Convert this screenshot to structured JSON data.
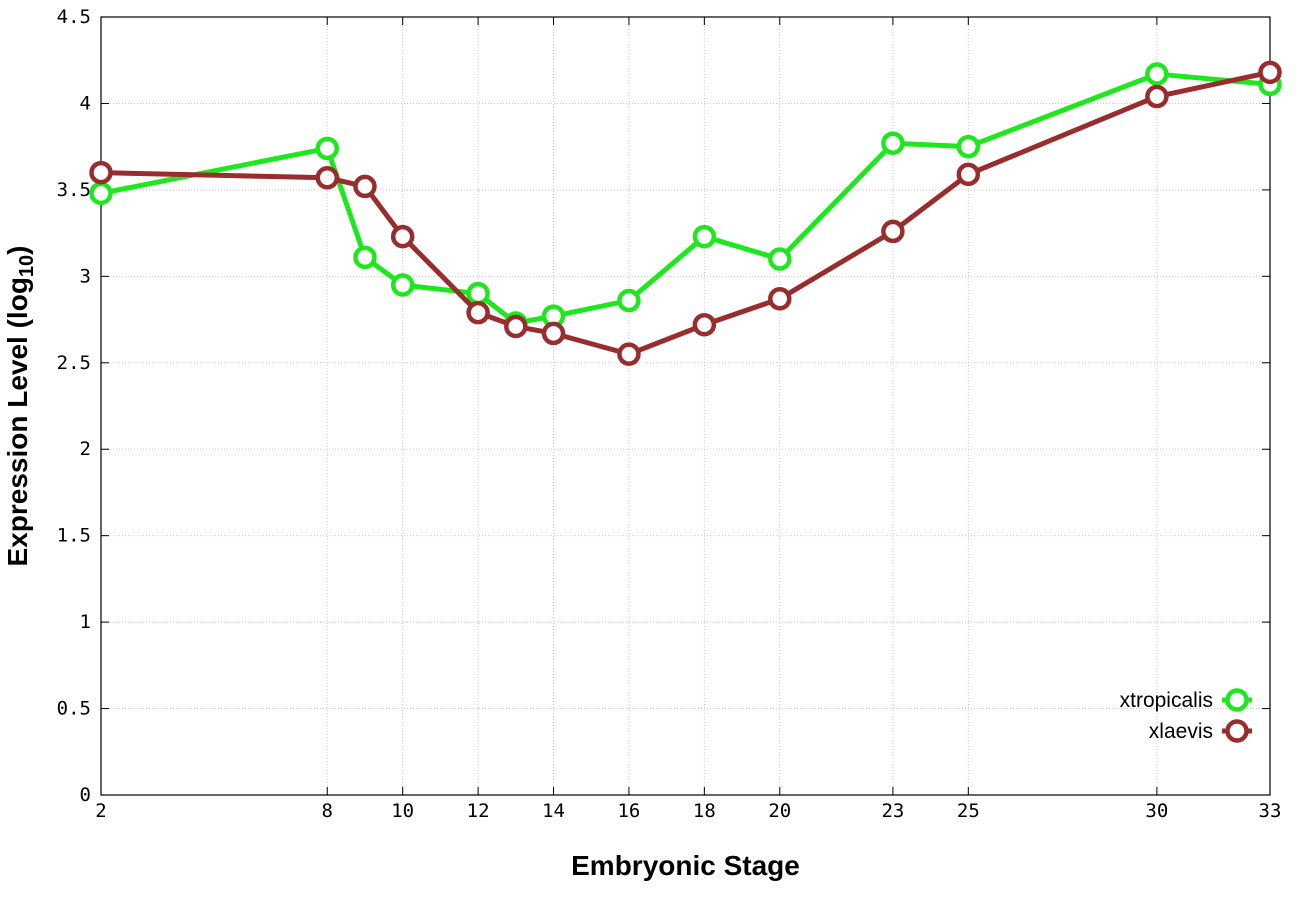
{
  "chart_data": {
    "type": "line",
    "title": "",
    "xlabel": "Embryonic Stage",
    "ylabel": "Expression Level (log",
    "ylabel_sub": "10",
    "ylabel_close": ")",
    "x_categories": [
      "2",
      "8",
      "9",
      "10",
      "12",
      "13",
      "14",
      "16",
      "18",
      "20",
      "23",
      "25",
      "30",
      "33"
    ],
    "x_tick_labels": [
      "2",
      "8",
      "10",
      "12",
      "14",
      "16",
      "18",
      "20",
      "23",
      "25",
      "30",
      "33"
    ],
    "y_ticks": [
      "0",
      "0.5",
      "1",
      "1.5",
      "2",
      "2.5",
      "3",
      "3.5",
      "4",
      "4.5"
    ],
    "ylim": [
      0,
      4.5
    ],
    "grid": true,
    "legend_position": "bottom-right",
    "series": [
      {
        "name": "xtropicalis",
        "color": "#1de81d",
        "values": [
          3.48,
          3.74,
          3.11,
          2.95,
          2.9,
          2.73,
          2.77,
          2.86,
          3.23,
          3.1,
          3.77,
          3.75,
          4.17,
          4.11
        ]
      },
      {
        "name": "xlaevis",
        "color": "#992c2c",
        "values": [
          3.6,
          3.57,
          3.52,
          3.23,
          2.79,
          2.71,
          2.67,
          2.55,
          2.72,
          2.87,
          3.26,
          3.59,
          4.04,
          4.18
        ]
      }
    ]
  }
}
